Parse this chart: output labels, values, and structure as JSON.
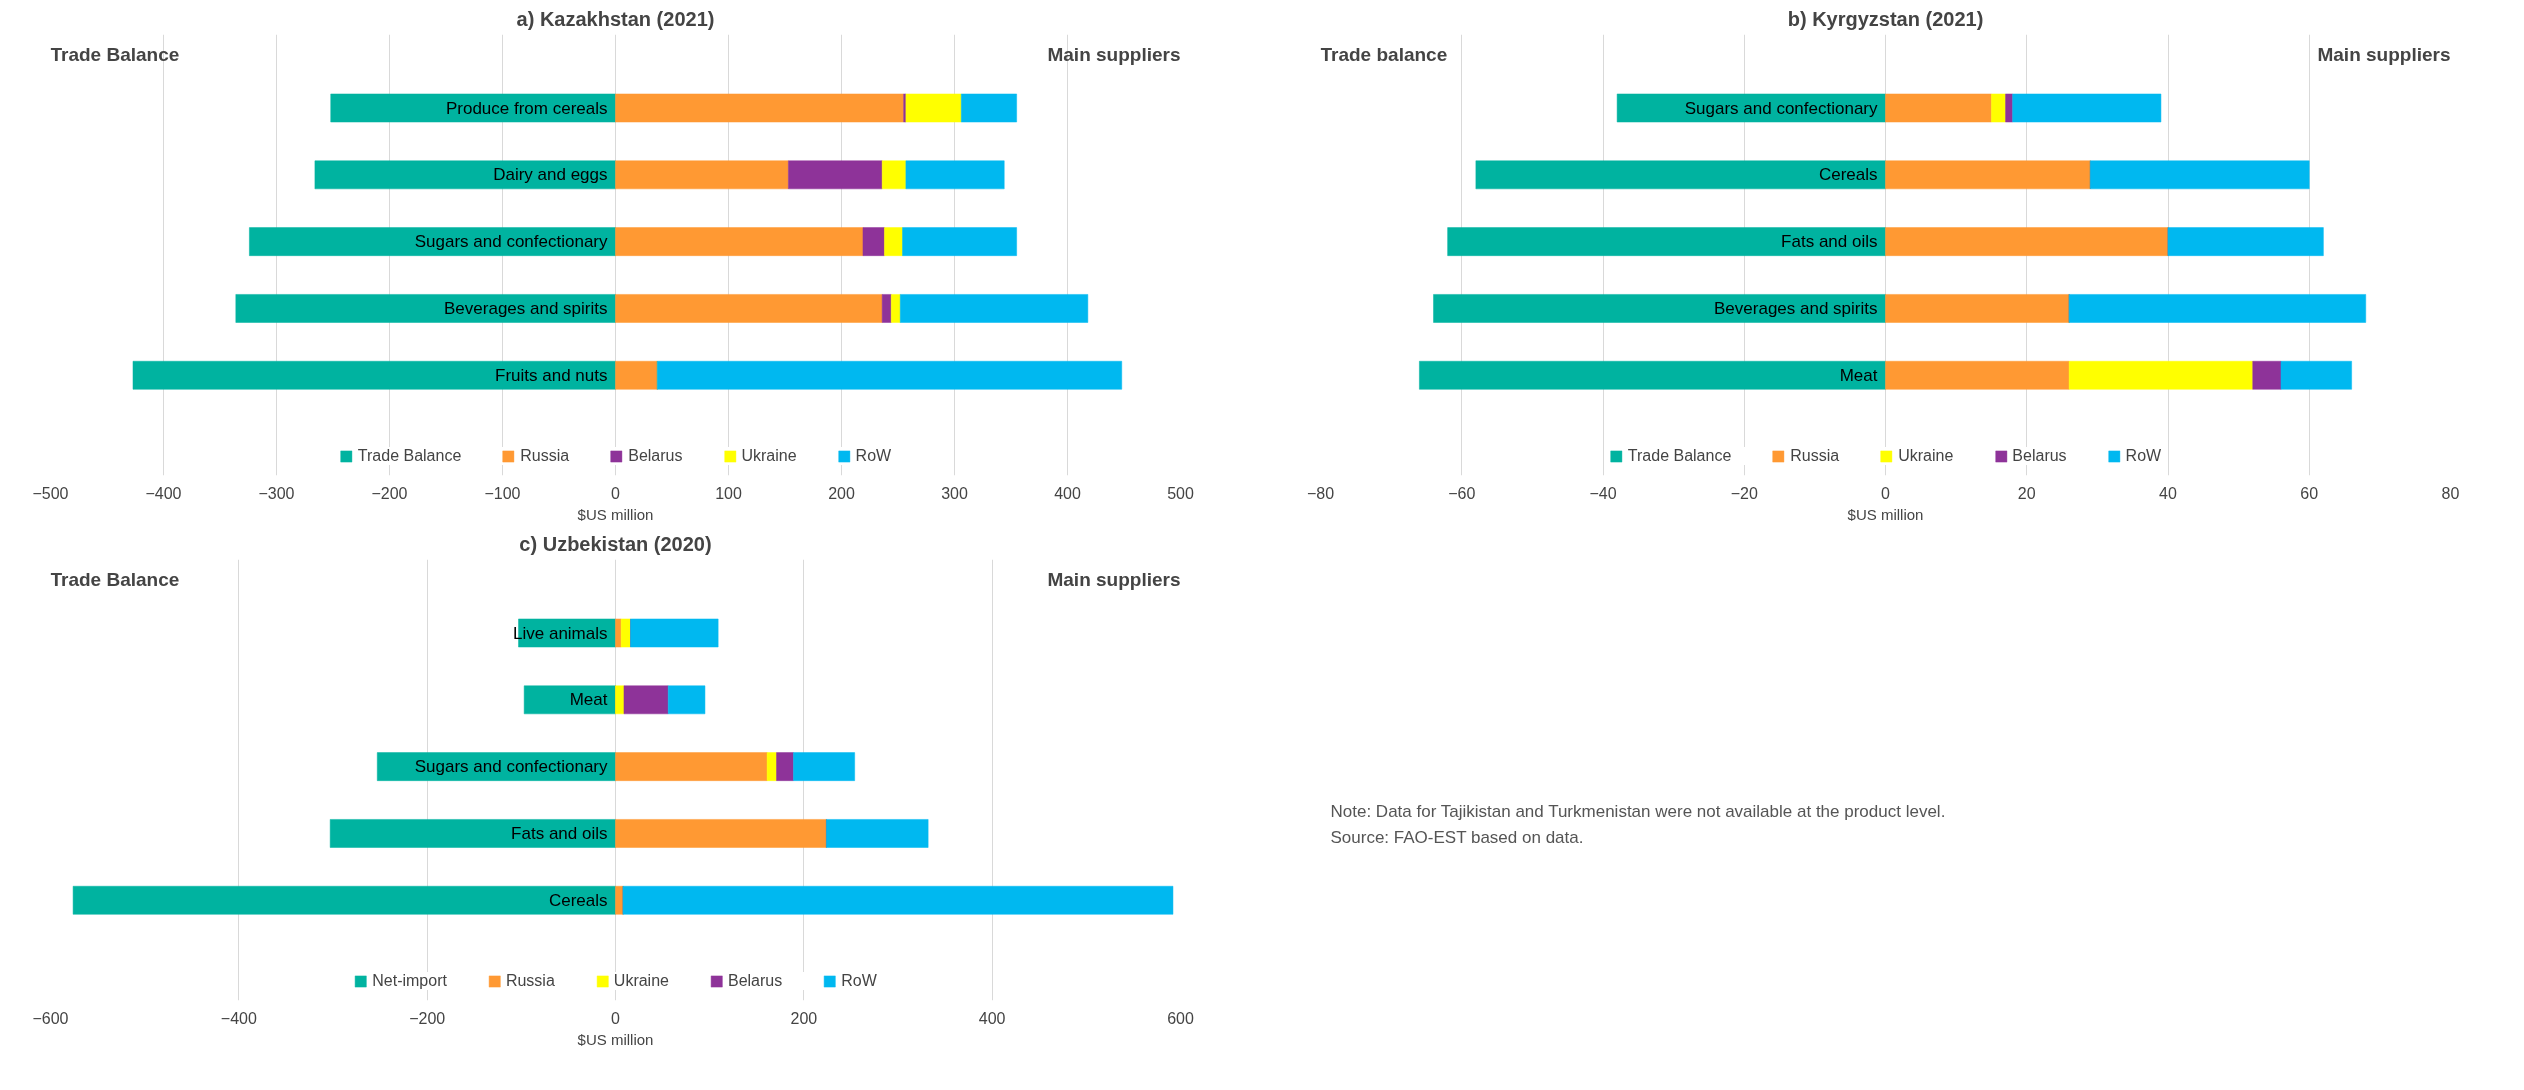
{
  "chart_data": [
    {
      "type": "bar",
      "orientation": "horizontal",
      "stacked": true,
      "title": "a) Kazakhstan (2021)",
      "xlabel": "$US million",
      "annotations": [
        "Trade Balance",
        "Main suppliers"
      ],
      "categories": [
        "Produce from cereals",
        "Dairy and eggs",
        "Sugars and confectionary",
        "Beverages and spirits",
        "Fruits and nuts"
      ],
      "series": [
        {
          "name": "Trade Balance",
          "color": "#00b3a0",
          "values": [
            -252,
            -266,
            -324,
            -336,
            -427
          ]
        },
        {
          "name": "Russia",
          "color": "#ff9933",
          "values": [
            255,
            153,
            219,
            236,
            37
          ]
        },
        {
          "name": "Belarus",
          "color": "#8e3399",
          "values": [
            2,
            83,
            19,
            8,
            0
          ]
        },
        {
          "name": "Ukraine",
          "color": "#ffff00",
          "values": [
            49,
            21,
            16,
            8,
            0
          ]
        },
        {
          "name": "RoW",
          "color": "#00b8f0",
          "values": [
            49,
            87,
            101,
            166,
            411
          ]
        }
      ],
      "xlim": [
        -500,
        500
      ],
      "xticks": [
        -500,
        -400,
        -300,
        -200,
        -100,
        0,
        100,
        200,
        300,
        400,
        500
      ],
      "grid": "x",
      "legend": "bottom"
    },
    {
      "type": "bar",
      "orientation": "horizontal",
      "stacked": true,
      "title": "b) Kyrgyzstan (2021)",
      "xlabel": "$US million",
      "annotations": [
        "Trade balance",
        "Main suppliers"
      ],
      "categories": [
        "Sugars and confectionary",
        "Cereals",
        "Fats and oils",
        "Beverages and spirits",
        "Meat"
      ],
      "series": [
        {
          "name": "Trade Balance",
          "color": "#00b3a0",
          "values": [
            -38,
            -58,
            -62,
            -64,
            -66
          ]
        },
        {
          "name": "Russia",
          "color": "#ff9933",
          "values": [
            15,
            29,
            40,
            26,
            26
          ]
        },
        {
          "name": "Ukraine",
          "color": "#ffff00",
          "values": [
            2,
            0,
            0,
            0,
            26
          ]
        },
        {
          "name": "Belarus",
          "color": "#8e3399",
          "values": [
            1,
            0,
            0,
            0,
            4
          ]
        },
        {
          "name": "RoW",
          "color": "#00b8f0",
          "values": [
            21,
            31,
            22,
            42,
            10
          ]
        }
      ],
      "xlim": [
        -80,
        80
      ],
      "xticks": [
        -80,
        -60,
        -40,
        -20,
        0,
        20,
        40,
        60,
        80
      ],
      "grid": "x",
      "legend": "bottom"
    },
    {
      "type": "bar",
      "orientation": "horizontal",
      "stacked": true,
      "title": "c) Uzbekistan (2020)",
      "xlabel": "$US million",
      "annotations": [
        "Trade Balance",
        "Main suppliers"
      ],
      "categories": [
        "Live animals",
        "Meat",
        "Sugars and confectionary",
        "Fats and oils",
        "Cereals"
      ],
      "series": [
        {
          "name": "Net-import",
          "color": "#00b3a0",
          "values": [
            -103,
            -97,
            -253,
            -303,
            -576
          ]
        },
        {
          "name": "Russia",
          "color": "#ff9933",
          "values": [
            6,
            0,
            161,
            224,
            8
          ]
        },
        {
          "name": "Ukraine",
          "color": "#ffff00",
          "values": [
            10,
            9,
            10,
            0,
            0
          ]
        },
        {
          "name": "Belarus",
          "color": "#8e3399",
          "values": [
            0,
            47,
            18,
            0,
            0
          ]
        },
        {
          "name": "RoW",
          "color": "#00b8f0",
          "values": [
            93,
            39,
            65,
            108,
            584
          ]
        }
      ],
      "xlim": [
        -600,
        600
      ],
      "xticks": [
        -600,
        -400,
        -200,
        0,
        200,
        400,
        600
      ],
      "grid": "x",
      "legend": "bottom"
    },
    {
      "type": "other",
      "annotations": [
        "Note: Data for Tajikistan and Turkmenistan were not available at the product level.",
        "Source: FAO-EST based on data."
      ]
    }
  ]
}
